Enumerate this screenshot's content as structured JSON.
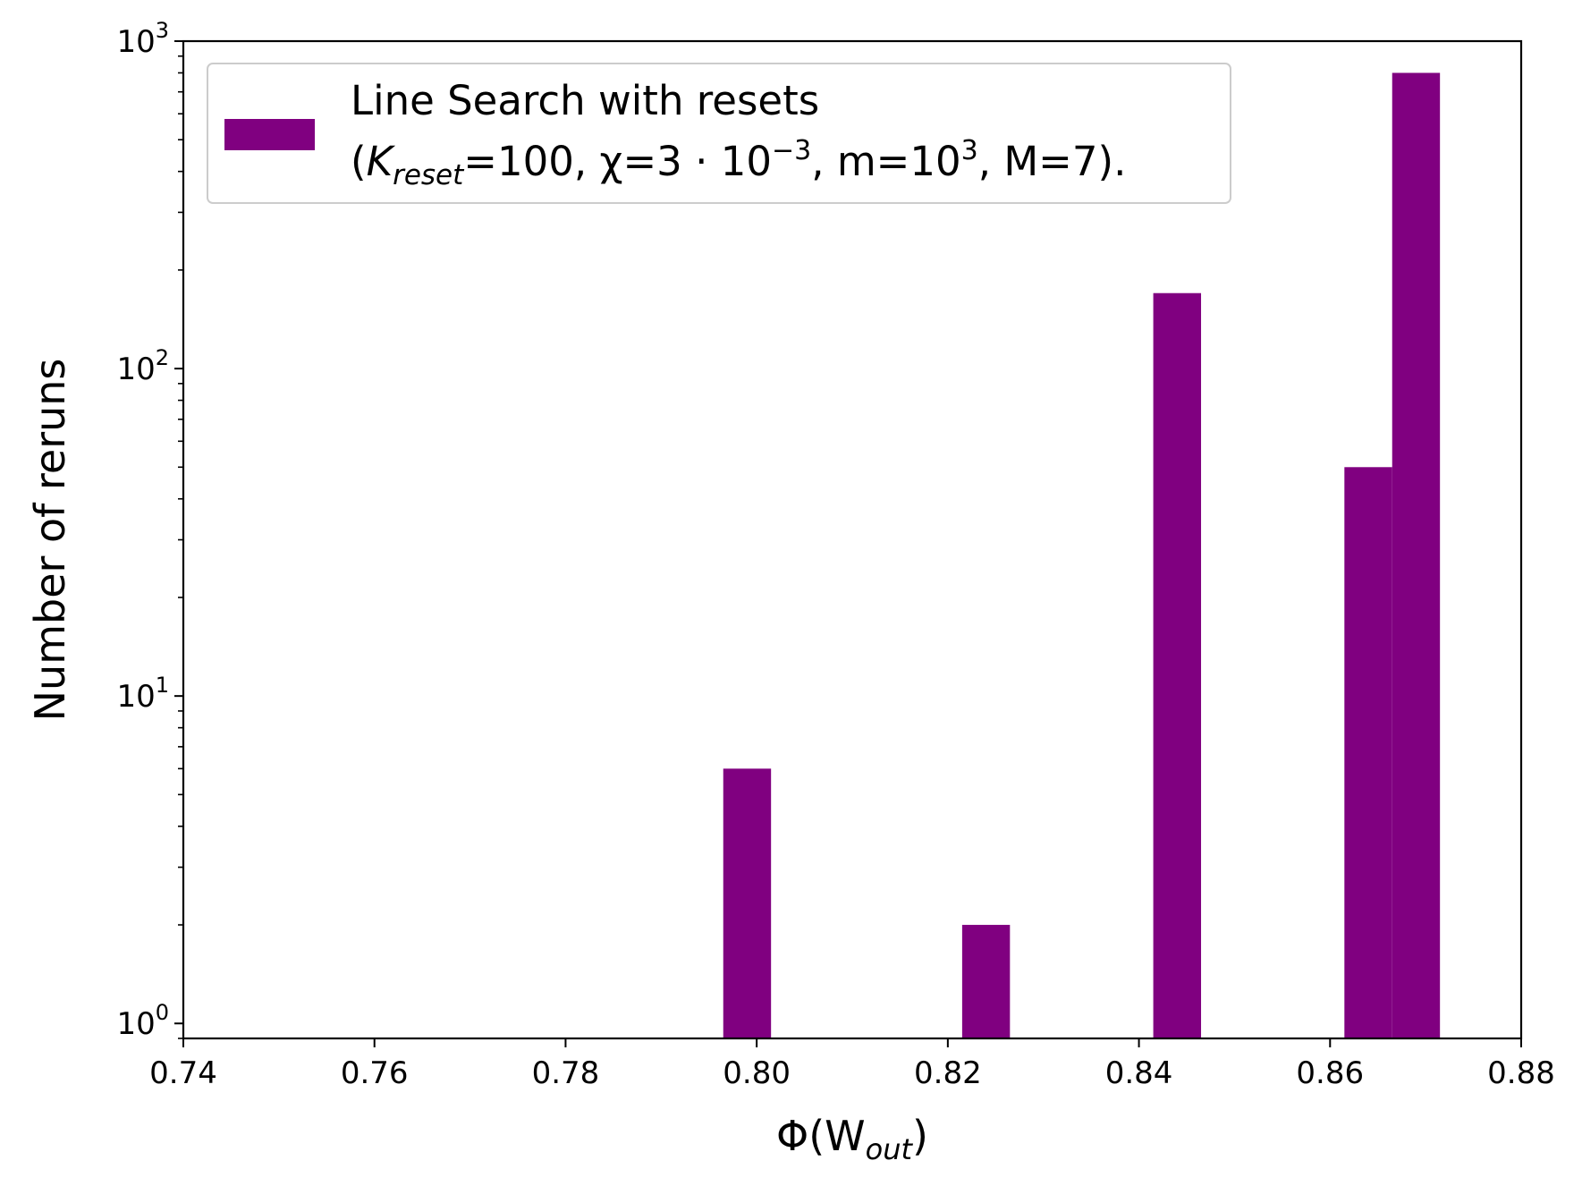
{
  "chart_data": {
    "type": "bar",
    "subtype": "histogram",
    "xlabel": "Φ(W",
    "xlabel_sub": "out",
    "xlabel_end": ")",
    "ylabel": "Number of reruns",
    "xlim": [
      0.74,
      0.88
    ],
    "ylim": [
      0.9,
      1000
    ],
    "yscale": "log",
    "grid": false,
    "legend_position": "upper-left",
    "x_ticks": [
      "0.74",
      "0.76",
      "0.78",
      "0.80",
      "0.82",
      "0.84",
      "0.86",
      "0.88"
    ],
    "y_ticks": [
      {
        "value": 1,
        "base": "10",
        "exp": "0"
      },
      {
        "value": 10,
        "base": "10",
        "exp": "1"
      },
      {
        "value": 100,
        "base": "10",
        "exp": "2"
      },
      {
        "value": 1000,
        "base": "10",
        "exp": "3"
      }
    ],
    "series": [
      {
        "legend_line1": "Line Search with resets",
        "legend_line2": {
          "open": "(",
          "k": "K",
          "k_sub": "reset",
          "k_val": "=100, χ=3 · 10",
          "chi_exp": "−3",
          "m_part": ", m=10",
          "m_exp": "3",
          "end": ", M=7)."
        },
        "color": "#800080",
        "bins": [
          {
            "x0": 0.7965,
            "x1": 0.8015,
            "count": 6
          },
          {
            "x0": 0.8215,
            "x1": 0.8265,
            "count": 2
          },
          {
            "x0": 0.8415,
            "x1": 0.8465,
            "count": 170
          },
          {
            "x0": 0.8615,
            "x1": 0.8665,
            "count": 50
          },
          {
            "x0": 0.8665,
            "x1": 0.8715,
            "count": 800
          }
        ]
      }
    ]
  }
}
